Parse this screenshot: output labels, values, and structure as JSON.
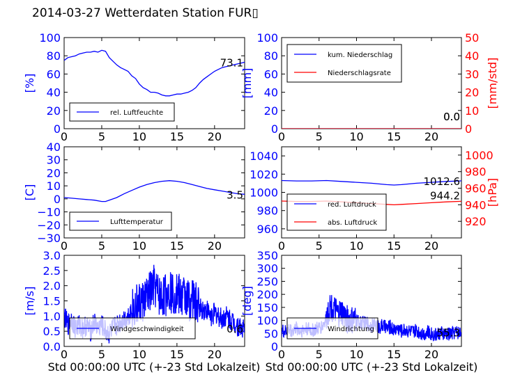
{
  "figure": {
    "title": "2014-03-27 Wetterdaten Station FUR▯",
    "xlabel": "Std 00:00:00 UTC (+-23 Std Lokalzeit)"
  },
  "colors": {
    "primary": "#0000ff",
    "secondary": "#ff0000",
    "axis": "#000000"
  },
  "chart_data": [
    {
      "type": "line",
      "ylabel": "[%]",
      "xlim": [
        0,
        24
      ],
      "ylim": [
        0,
        100
      ],
      "xticks": [
        "0",
        "5",
        "10",
        "15",
        "20"
      ],
      "yticks": [
        "0",
        "20",
        "40",
        "60",
        "80",
        "100"
      ],
      "last_value": "73.1",
      "legend": {
        "placement": "lower-left",
        "entries": [
          "rel. Luftfeuchte"
        ]
      },
      "series": [
        {
          "name": "rel. Luftfeuchte",
          "color": "#0000ff",
          "x": [
            0,
            0.5,
            1,
            1.5,
            2,
            2.5,
            3,
            3.5,
            4,
            4.5,
            5,
            5.5,
            6,
            6.5,
            7,
            7.5,
            8,
            8.5,
            9,
            9.5,
            10,
            10.5,
            11,
            11.5,
            12,
            12.5,
            13,
            13.5,
            14,
            14.5,
            15,
            15.5,
            16,
            16.5,
            17,
            17.5,
            18,
            18.5,
            19,
            19.5,
            20,
            20.5,
            21,
            21.5,
            22,
            22.5,
            23,
            23.5,
            24
          ],
          "y": [
            75,
            78,
            79,
            80,
            82,
            83,
            84,
            84,
            85,
            84,
            86,
            85,
            78,
            74,
            70,
            67,
            65,
            63,
            58,
            55,
            49,
            45,
            43,
            40,
            40,
            39,
            37,
            36,
            36,
            37,
            38,
            38,
            39,
            40,
            42,
            45,
            50,
            54,
            57,
            60,
            63,
            65,
            67,
            68,
            69,
            70,
            71,
            72,
            73
          ]
        }
      ]
    },
    {
      "type": "line",
      "ylabel": "[mm]",
      "y2label": "[mm/std]",
      "xlim": [
        0,
        24
      ],
      "ylim": [
        0,
        100
      ],
      "y2lim": [
        0,
        50
      ],
      "xticks": [
        "0",
        "5",
        "10",
        "15",
        "20"
      ],
      "yticks": [
        "0",
        "20",
        "40",
        "60",
        "80",
        "100"
      ],
      "y2ticks": [
        "0",
        "10",
        "20",
        "30",
        "40",
        "50"
      ],
      "last_value": "0.0",
      "last_value_2": "0.0",
      "legend": {
        "placement": "upper-left",
        "entries": [
          "kum. Niederschlag",
          "Niederschlagsrate"
        ]
      },
      "series": [
        {
          "name": "kum. Niederschlag",
          "color": "#0000ff",
          "x": [
            0,
            24
          ],
          "y": [
            0,
            0
          ]
        },
        {
          "name": "Niederschlagsrate",
          "color": "#ff0000",
          "axis": "right",
          "x": [
            0,
            24
          ],
          "y": [
            0,
            0
          ]
        }
      ]
    },
    {
      "type": "line",
      "ylabel": "[C]",
      "xlim": [
        0,
        24
      ],
      "ylim": [
        -30,
        40
      ],
      "xticks": [
        "0",
        "5",
        "10",
        "15",
        "20"
      ],
      "yticks": [
        "−30",
        "−20",
        "−10",
        "0",
        "10",
        "20",
        "30",
        "40"
      ],
      "last_value": "3.5",
      "legend": {
        "placement": "lower-left",
        "entries": [
          "Lufttemperatur"
        ]
      },
      "series": [
        {
          "name": "Lufttemperatur",
          "color": "#0000ff",
          "x": [
            0,
            1,
            2,
            3,
            4,
            5,
            5.5,
            6,
            7,
            8,
            9,
            10,
            11,
            12,
            13,
            14,
            15,
            16,
            17,
            18,
            19,
            20,
            21,
            22,
            23,
            24
          ],
          "y": [
            1,
            0.5,
            0,
            -0.5,
            -1,
            -2,
            -2,
            -1,
            1,
            4,
            6.5,
            9,
            11,
            12.5,
            13.5,
            14,
            13.5,
            12.5,
            11,
            9.5,
            8,
            7,
            6,
            5,
            4,
            3.5
          ]
        }
      ]
    },
    {
      "type": "line",
      "ylabel": "",
      "y2label": "[hPa]",
      "xlim": [
        0,
        24
      ],
      "ylim": [
        950,
        1050
      ],
      "y2lim": [
        900,
        1010
      ],
      "xticks": [
        "0",
        "5",
        "10",
        "15",
        "20"
      ],
      "yticks": [
        "960",
        "980",
        "1000",
        "1020",
        "1040"
      ],
      "y2ticks": [
        "920",
        "940",
        "960",
        "980",
        "1000"
      ],
      "last_value": "1012.6",
      "last_value_2": "944.2",
      "legend": {
        "placement": "lower-left",
        "entries": [
          "red. Luftdruck",
          "abs. Luftdruck"
        ]
      },
      "series": [
        {
          "name": "red. Luftdruck",
          "color": "#0000ff",
          "x": [
            0,
            2,
            4,
            6,
            8,
            10,
            12,
            14,
            15,
            16,
            18,
            20,
            22,
            24
          ],
          "y": [
            1013,
            1012.5,
            1012.5,
            1013,
            1012,
            1011,
            1010,
            1008.5,
            1008,
            1008.5,
            1010,
            1011,
            1012,
            1012.6
          ]
        },
        {
          "name": "abs. Luftdruck",
          "color": "#ff0000",
          "axis": "right",
          "x": [
            0,
            2,
            4,
            6,
            8,
            10,
            12,
            14,
            15,
            16,
            18,
            20,
            22,
            24
          ],
          "y": [
            944.5,
            944,
            944,
            944.5,
            943.5,
            942.5,
            941.5,
            940.5,
            940,
            940.5,
            941.5,
            942.5,
            943.5,
            944.2
          ]
        }
      ]
    },
    {
      "type": "line",
      "ylabel": "[m/s]",
      "xlim": [
        0,
        24
      ],
      "ylim": [
        0,
        3
      ],
      "xticks": [
        "0",
        "5",
        "10",
        "15",
        "20"
      ],
      "yticks": [
        "0.0",
        "0.5",
        "1.0",
        "1.5",
        "2.0",
        "2.5",
        "3.0"
      ],
      "last_value": "0.6",
      "legend": {
        "placement": "lower-left",
        "entries": [
          "Windgeschwindigkeit"
        ]
      },
      "series": [
        {
          "name": "Windgeschwindigkeit",
          "color": "#0000ff",
          "x": [
            0,
            0.5,
            1,
            1.5,
            2,
            2.5,
            3,
            3.5,
            4,
            4.5,
            5,
            5.5,
            6,
            6.5,
            7,
            7.5,
            8,
            8.5,
            9,
            9.5,
            10,
            10.5,
            11,
            11.5,
            12,
            12.5,
            13,
            13.5,
            14,
            14.5,
            15,
            15.5,
            16,
            16.5,
            17,
            17.5,
            18,
            18.5,
            19,
            19.5,
            20,
            20.5,
            21,
            21.5,
            22,
            22.5,
            23,
            23.5,
            24
          ],
          "y": [
            1.0,
            0.7,
            0.9,
            0.6,
            0.7,
            0.6,
            0.7,
            0.5,
            0.8,
            0.6,
            0.7,
            0.5,
            0.4,
            0.6,
            0.7,
            0.8,
            0.9,
            1.0,
            1.2,
            1.3,
            1.4,
            1.5,
            1.6,
            1.8,
            2.0,
            1.7,
            1.6,
            1.7,
            1.9,
            1.7,
            1.8,
            1.6,
            1.7,
            1.5,
            1.6,
            1.4,
            1.3,
            1.2,
            1.2,
            1.0,
            1.1,
            1.0,
            0.9,
            1.0,
            0.9,
            0.8,
            0.7,
            0.6,
            0.6
          ]
        }
      ]
    },
    {
      "type": "line",
      "ylabel": "[deg]",
      "xlim": [
        0,
        24
      ],
      "ylim": [
        0,
        350
      ],
      "xticks": [
        "0",
        "5",
        "10",
        "15",
        "20"
      ],
      "yticks": [
        "0",
        "50",
        "100",
        "150",
        "200",
        "250",
        "300",
        "350"
      ],
      "last_value": "55.3",
      "legend": {
        "placement": "lower-left",
        "entries": [
          "Windrichtung"
        ]
      },
      "series": [
        {
          "name": "Windrichtung",
          "color": "#0000ff",
          "x": [
            0,
            0.5,
            1,
            1.5,
            2,
            2.5,
            3,
            3.5,
            4,
            4.5,
            5,
            5.5,
            6,
            6.5,
            7,
            7.5,
            8,
            8.5,
            9,
            9.5,
            10,
            10.5,
            11,
            11.5,
            12,
            12.5,
            13,
            13.5,
            14,
            14.5,
            15,
            15.5,
            16,
            16.5,
            17,
            17.5,
            18,
            18.5,
            19,
            19.5,
            20,
            20.5,
            21,
            21.5,
            22,
            22.5,
            23,
            23.5,
            24
          ],
          "y": [
            60,
            55,
            65,
            60,
            70,
            60,
            65,
            70,
            60,
            65,
            70,
            80,
            110,
            160,
            140,
            120,
            130,
            110,
            100,
            95,
            100,
            90,
            90,
            85,
            80,
            85,
            75,
            80,
            70,
            75,
            65,
            70,
            60,
            65,
            60,
            55,
            60,
            55,
            50,
            55,
            50,
            45,
            50,
            50,
            45,
            50,
            55,
            55,
            55
          ]
        }
      ]
    }
  ]
}
